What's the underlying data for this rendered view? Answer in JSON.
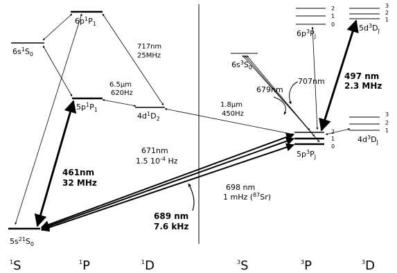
{
  "levels": {
    "s0_1": {
      "config": "5s",
      "base": "S",
      "two": "2",
      "spin": "1",
      "j": "0"
    },
    "s0_2": {
      "config": "6s",
      "base": "S",
      "spin": "1",
      "j": "0"
    },
    "p1_1": {
      "config": "5p",
      "base": "P",
      "spin": "1",
      "j": "1"
    },
    "p1_2": {
      "config": "6p",
      "base": "P",
      "spin": "1",
      "j": "1"
    },
    "d1": {
      "config": "4d",
      "base": "D",
      "spin": "1",
      "j": "2"
    },
    "s3": {
      "config": "6s",
      "base": "S",
      "spin": "3",
      "j": "0"
    },
    "p3_1": {
      "config": "5p",
      "base": "P",
      "spin": "3",
      "j": "J",
      "ticks": [
        "2",
        "1",
        "0"
      ]
    },
    "p3_2": {
      "config": "6p",
      "base": "P",
      "spin": "3",
      "j": "J",
      "ticks": [
        "2",
        "1",
        "0"
      ]
    },
    "d3_1": {
      "config": "4d",
      "base": "D",
      "spin": "3",
      "j": "J",
      "ticks": [
        "3",
        "2",
        "1"
      ]
    },
    "d3_2": {
      "config": "5d",
      "base": "D",
      "spin": "3",
      "j": "J",
      "ticks": [
        "3",
        "2",
        "1"
      ]
    }
  },
  "transitions": {
    "t461": {
      "wavelength": "461nm",
      "width": "32 MHz"
    },
    "t689": {
      "wavelength": "689 nm",
      "width": "7.6 kHz"
    },
    "t671": {
      "wavelength": "671nm",
      "width_prefix": "1.5 10",
      "width_exp": "-4",
      "width_unit": " Hz"
    },
    "t698": {
      "wavelength": "698 nm",
      "width_prefix": "1 mHz (",
      "isotope": "87",
      "element": "Sr)"
    },
    "t717": {
      "wavelength": "717nm",
      "width": "25MHz"
    },
    "t6_5": {
      "wavelength": "6.5µm",
      "width": "620Hz"
    },
    "t1_8": {
      "wavelength": "1.8µm",
      "width": "450Hz"
    },
    "t679": {
      "wavelength": "679nm"
    },
    "t707": {
      "wavelength": "707nm"
    },
    "t497": {
      "wavelength": "497 nm",
      "width": "2.3 MHz"
    }
  },
  "columns": [
    {
      "spin": "1",
      "letter": "S"
    },
    {
      "spin": "1",
      "letter": "P"
    },
    {
      "spin": "1",
      "letter": "D"
    },
    {
      "spin": "3",
      "letter": "S"
    },
    {
      "spin": "3",
      "letter": "P"
    },
    {
      "spin": "3",
      "letter": "D"
    }
  ]
}
